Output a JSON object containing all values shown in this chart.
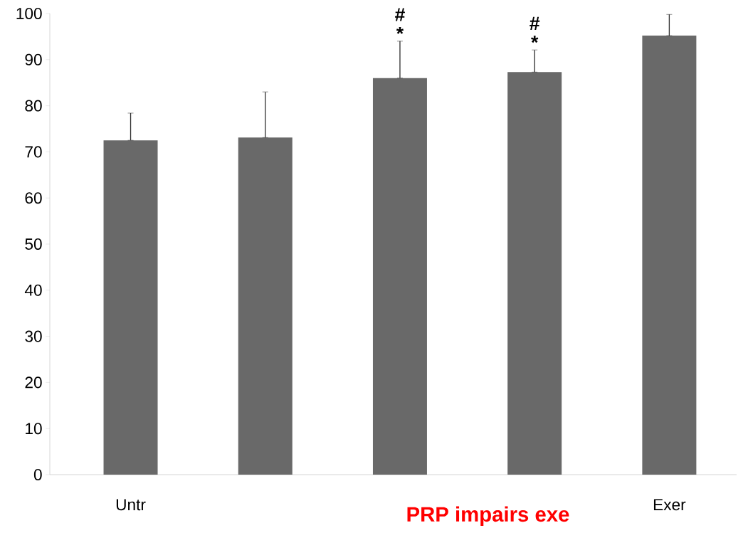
{
  "chart_data": {
    "type": "bar",
    "categories": [
      "Untr",
      null,
      null,
      null,
      "Exer"
    ],
    "values": [
      72.5,
      73.1,
      86.0,
      87.3,
      95.2
    ],
    "errors": [
      [
        72.5,
        78.4
      ],
      [
        73.1,
        83.0
      ],
      [
        86.0,
        94.0
      ],
      [
        87.3,
        92.1
      ],
      [
        95.2,
        99.8
      ]
    ],
    "color": "#696969",
    "value_labels": [
      null,
      null,
      "# *",
      "# *",
      null
    ],
    "ylim": [
      0,
      100
    ],
    "yticks": [
      0,
      10,
      20,
      30,
      40,
      50,
      60,
      70,
      80,
      90,
      100
    ],
    "annotations": [
      "PRP impairs exe"
    ]
  }
}
